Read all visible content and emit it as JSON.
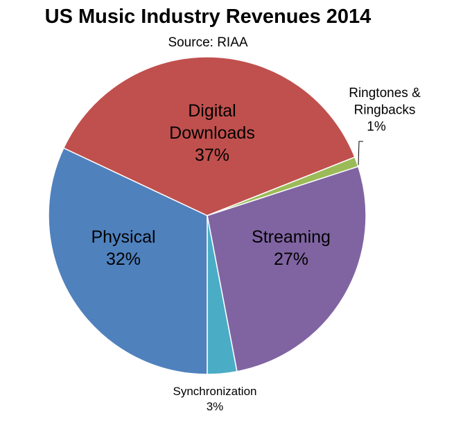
{
  "chart_data": {
    "type": "pie",
    "title": "US Music Industry Revenues 2014",
    "subtitle": "Source: RIAA",
    "start_angle_deg": 180,
    "direction": "clockwise",
    "slices": [
      {
        "label": "Physical",
        "value": 32,
        "display": "32%",
        "color": "#4F81BD"
      },
      {
        "label": "Digital Downloads",
        "value": 37,
        "display": "37%",
        "color": "#C0504D"
      },
      {
        "label": "Ringtones & Ringbacks",
        "value": 1,
        "display": "1%",
        "color": "#9BBB59"
      },
      {
        "label": "Streaming",
        "value": 27,
        "display": "27%",
        "color": "#8064A2"
      },
      {
        "label": "Synchronization",
        "value": 3,
        "display": "3%",
        "color": "#4BACC6"
      }
    ]
  }
}
